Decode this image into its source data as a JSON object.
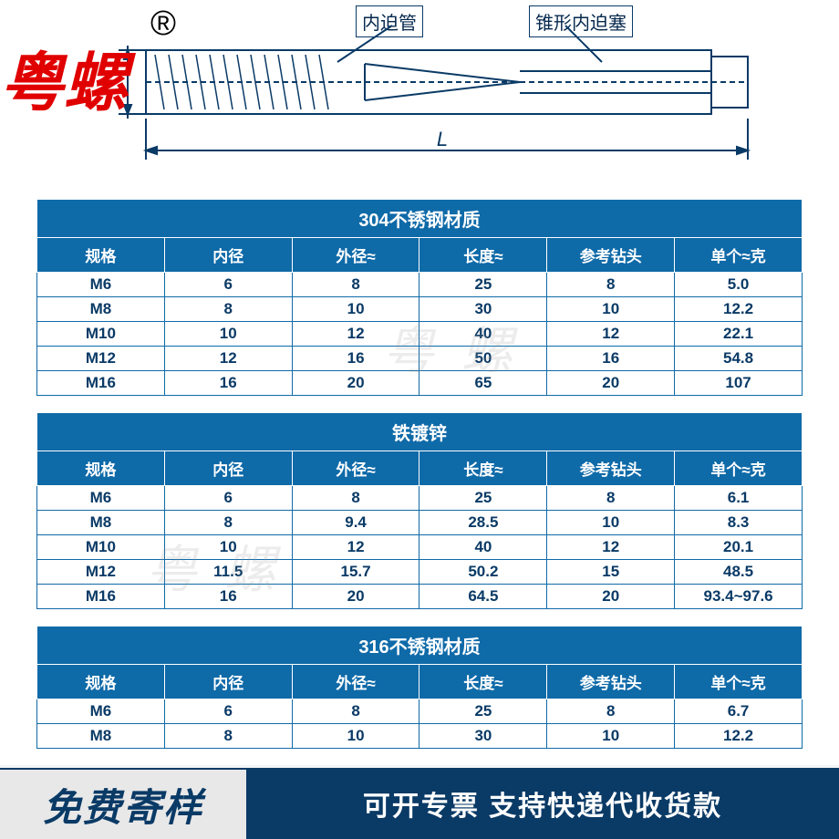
{
  "colors": {
    "brand_red": "#e00000",
    "table_header_bg": "#0f6aa8",
    "table_text": "#0a3a66",
    "table_border": "#0f6aa8",
    "footer_dark": "#0a3a66",
    "footer_light_bg": "#e8e8e8",
    "page_bg": "#f5f5f5",
    "diagram_stroke": "#0a3a66"
  },
  "logo": {
    "text": "粤螺",
    "reg_mark": "®"
  },
  "diagram": {
    "label_left": "内迫管",
    "label_right": "锥形内迫塞",
    "dimension_label": "L"
  },
  "watermark_text": "粤螺",
  "common_headers": [
    "规格",
    "内径",
    "外径≈",
    "长度≈",
    "参考钻头",
    "单个≈克"
  ],
  "tables": [
    {
      "title": "304不锈钢材质",
      "rows": [
        [
          "M6",
          "6",
          "8",
          "25",
          "8",
          "5.0"
        ],
        [
          "M8",
          "8",
          "10",
          "30",
          "10",
          "12.2"
        ],
        [
          "M10",
          "10",
          "12",
          "40",
          "12",
          "22.1"
        ],
        [
          "M12",
          "12",
          "16",
          "50",
          "16",
          "54.8"
        ],
        [
          "M16",
          "16",
          "20",
          "65",
          "20",
          "107"
        ]
      ]
    },
    {
      "title": "铁镀锌",
      "rows": [
        [
          "M6",
          "6",
          "8",
          "25",
          "8",
          "6.1"
        ],
        [
          "M8",
          "8",
          "9.4",
          "28.5",
          "10",
          "8.3"
        ],
        [
          "M10",
          "10",
          "12",
          "40",
          "12",
          "20.1"
        ],
        [
          "M12",
          "11.5",
          "15.7",
          "50.2",
          "15",
          "48.5"
        ],
        [
          "M16",
          "16",
          "20",
          "64.5",
          "20",
          "93.4~97.6"
        ]
      ]
    },
    {
      "title": "316不锈钢材质",
      "rows": [
        [
          "M6",
          "6",
          "8",
          "25",
          "8",
          "6.7"
        ],
        [
          "M8",
          "8",
          "10",
          "30",
          "10",
          "12.2"
        ]
      ]
    }
  ],
  "footer": {
    "left": "免费寄样",
    "right": "可开专票 支持快递代收货款"
  }
}
